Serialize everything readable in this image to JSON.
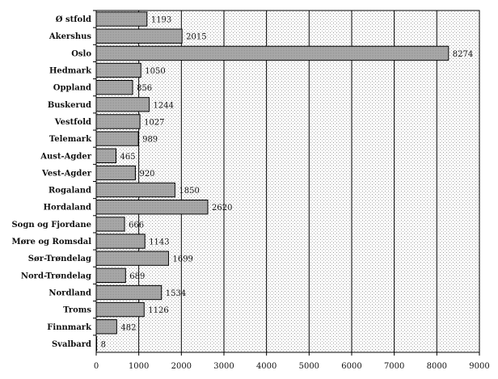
{
  "chart_data": {
    "type": "bar",
    "orientation": "horizontal",
    "title": "",
    "xlabel": "",
    "ylabel": "",
    "categories": [
      "Ø stfold",
      "Akershus",
      "Oslo",
      "Hedmark",
      "Oppland",
      "Buskerud",
      "Vestfold",
      "Telemark",
      "Aust-Agder",
      "Vest-Agder",
      "Rogaland",
      "Hordaland",
      "Sogn og Fjordane",
      "Møre og Romsdal",
      "Sør-Trøndelag",
      "Nord-Trøndelag",
      "Nordland",
      "Troms",
      "Finnmark",
      "Svalbard"
    ],
    "values": [
      1193,
      2015,
      8274,
      1050,
      856,
      1244,
      1027,
      989,
      465,
      920,
      1850,
      2620,
      666,
      1143,
      1699,
      689,
      1534,
      1126,
      482,
      8
    ],
    "xlim": [
      0,
      9000
    ],
    "xticks": [
      0,
      1000,
      2000,
      3000,
      4000,
      5000,
      6000,
      7000,
      8000,
      9000
    ],
    "grid": true,
    "legend": "none"
  }
}
